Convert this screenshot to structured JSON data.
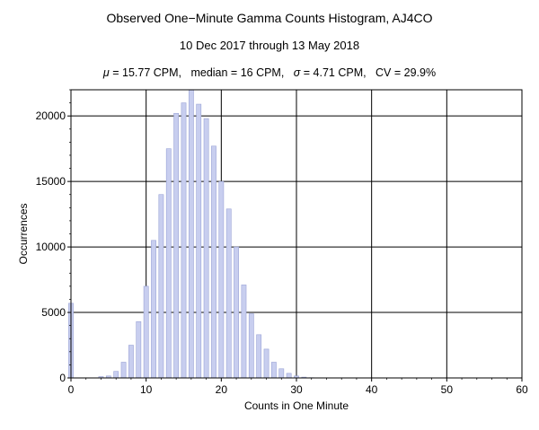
{
  "chart_data": {
    "type": "bar",
    "title": "Observed One−Minute Gamma Counts Histogram, AJ4CO",
    "subtitle": "10 Dec 2017 through 13 May 2018",
    "stats": {
      "mu_symbol": "μ",
      "mu_text": " = 15.77 CPM,   median = 16 CPM,   ",
      "sigma_symbol": "σ",
      "sigma_text": " = 4.71 CPM,   CV = 29.9%"
    },
    "xlabel": "Counts in One Minute",
    "ylabel": "Occurrences",
    "xlim": [
      0,
      60
    ],
    "ylim": [
      0,
      22000
    ],
    "x_ticks": [
      0,
      10,
      20,
      30,
      40,
      50,
      60
    ],
    "y_ticks": [
      0,
      5000,
      10000,
      15000,
      20000
    ],
    "grid": true,
    "bar_color": "#c8ceef",
    "bar_edge": "#9aa3d6",
    "x": [
      0,
      1,
      2,
      3,
      4,
      5,
      6,
      7,
      8,
      9,
      10,
      11,
      12,
      13,
      14,
      15,
      16,
      17,
      18,
      19,
      20,
      21,
      22,
      23,
      24,
      25,
      26,
      27,
      28,
      29,
      30,
      31,
      32
    ],
    "values": [
      5700,
      0,
      0,
      0,
      100,
      150,
      500,
      1200,
      2500,
      4300,
      7000,
      10500,
      14000,
      17500,
      20200,
      21000,
      22000,
      20900,
      19800,
      17700,
      15000,
      12900,
      10000,
      7100,
      4900,
      3300,
      2200,
      1200,
      700,
      350,
      150,
      60,
      20
    ]
  }
}
